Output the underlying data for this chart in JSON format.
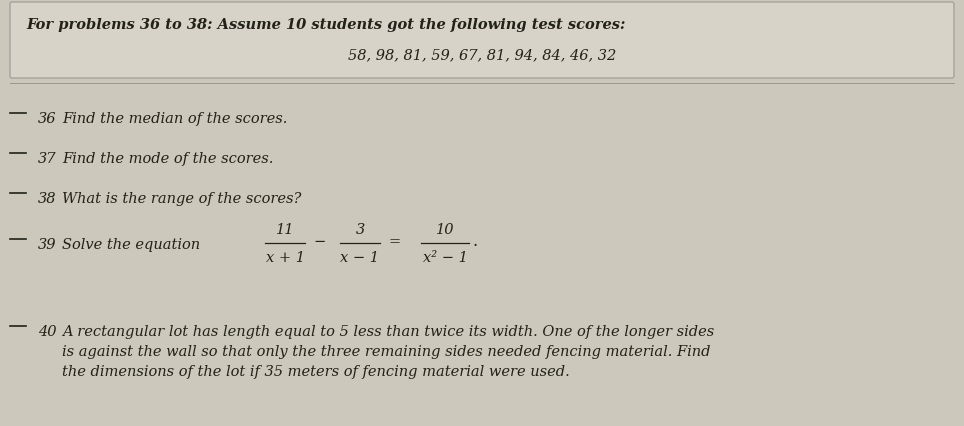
{
  "bg_color": "#cdc8bc",
  "box_bg_color": "#d8d3c8",
  "box_border_color": "#999990",
  "text_color": "#222218",
  "title_line1": "For problems 36 to 38: Assume 10 students got the following test scores:",
  "title_line2": "58, 98, 81, 59, 67, 81, 94, 84, 46, 32",
  "items": [
    {
      "num": "36",
      "text": "Find the median of the scores."
    },
    {
      "num": "37",
      "text": "Find the mode of the scores."
    },
    {
      "num": "38",
      "text": "What is the range of the scores?"
    },
    {
      "num": "39",
      "text": "Solve the equation"
    },
    {
      "num": "40",
      "text": "A rectangular lot has length equal to 5 less than twice its width. One of the longer sides\nis against the wall so that only the three remaining sides needed fencing material. Find\nthe dimensions of the lot if 35 meters of fencing material were used."
    }
  ],
  "font_size_title": 10.5,
  "font_size_body": 10.5
}
